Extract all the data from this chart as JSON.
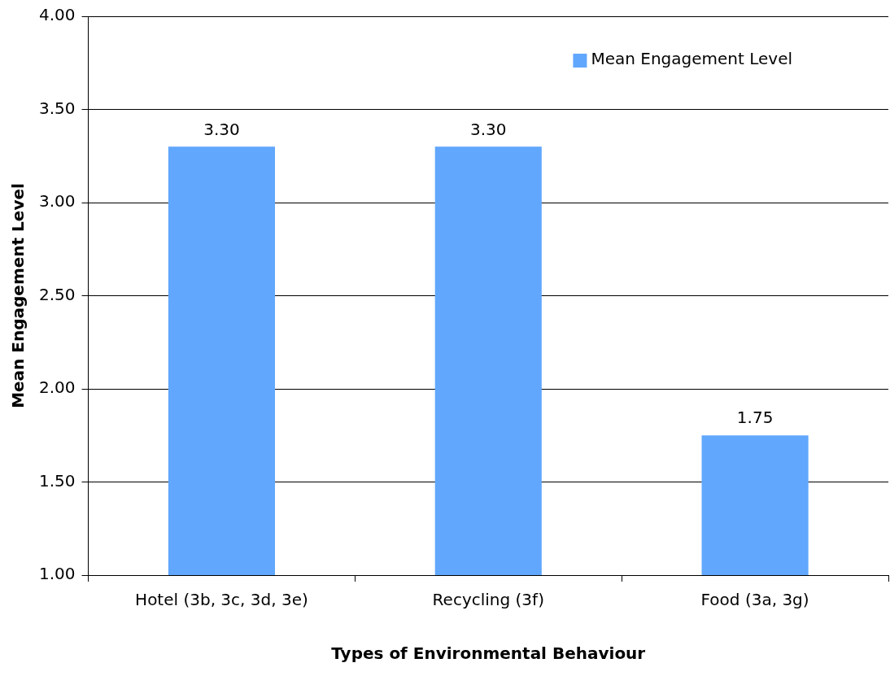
{
  "chart_data": {
    "type": "bar",
    "xlabel": "Types of Environmental Behaviour",
    "ylabel": "Mean Engagement Level",
    "categories": [
      "Hotel (3b, 3c, 3d, 3e)",
      "Recycling (3f)",
      "Food (3a, 3g)"
    ],
    "series": [
      {
        "name": "Mean Engagement Level",
        "color": "#61a7fd",
        "values": [
          3.3,
          3.3,
          1.75
        ],
        "value_labels": [
          "3.30",
          "3.30",
          "1.75"
        ]
      }
    ],
    "ylim": [
      1,
      4
    ],
    "yticks": [
      {
        "value": 1,
        "label": "1.00"
      },
      {
        "value": 1.5,
        "label": "1.50"
      },
      {
        "value": 2,
        "label": "2.00"
      },
      {
        "value": 2.5,
        "label": "2.50"
      },
      {
        "value": 3,
        "label": "3.00"
      },
      {
        "value": 3.5,
        "label": "3.50"
      },
      {
        "value": 4,
        "label": "4.00"
      }
    ],
    "grid": "y",
    "legend": "top right"
  }
}
